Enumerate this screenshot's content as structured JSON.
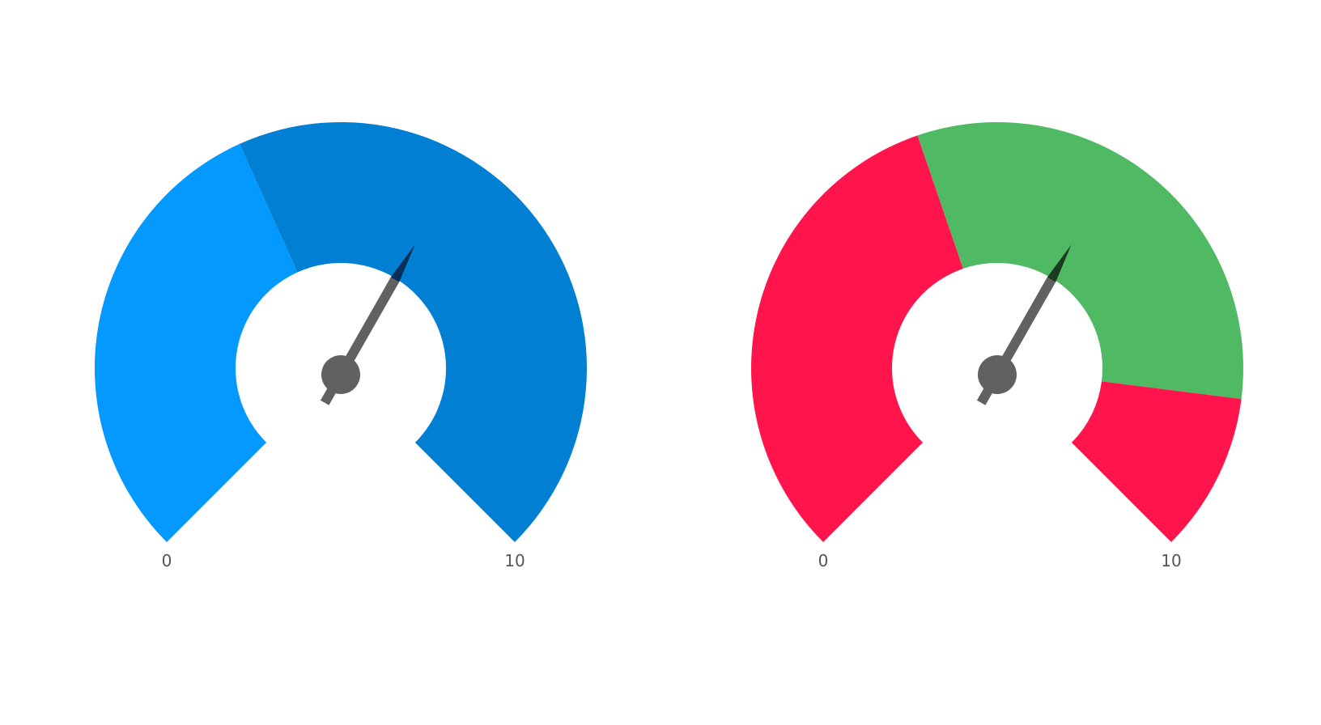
{
  "chart_data": [
    {
      "type": "gauge",
      "min": 0,
      "max": 10,
      "value": 6.1,
      "min_label": "0",
      "max_label": "10",
      "bands": [
        {
          "from": 0,
          "to": 4.1,
          "color": "#0399FE"
        },
        {
          "from": 4.1,
          "to": 10,
          "color": "#017FD3"
        }
      ],
      "needle_color": "#616161",
      "needle_tip_color": "#0B2E57"
    },
    {
      "type": "gauge",
      "min": 0,
      "max": 10,
      "value": 6.1,
      "min_label": "0",
      "max_label": "10",
      "bands": [
        {
          "from": 0,
          "to": 4.3,
          "color": "#FF154C"
        },
        {
          "from": 4.3,
          "to": 8.6,
          "color": "#50B964"
        },
        {
          "from": 8.6,
          "to": 10,
          "color": "#FF154C"
        }
      ],
      "needle_color": "#616161",
      "needle_tip_color": "#1B3A1F"
    }
  ]
}
